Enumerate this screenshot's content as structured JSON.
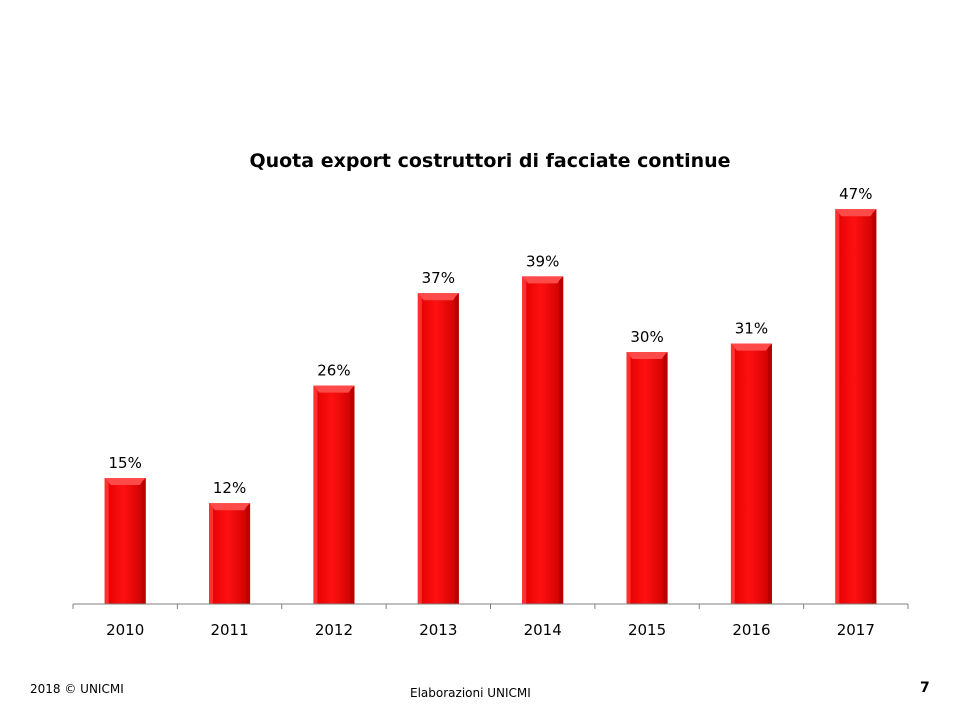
{
  "chart_data": {
    "type": "bar",
    "title": "Quota export costruttori di facciate continue",
    "categories": [
      "2010",
      "2011",
      "2012",
      "2013",
      "2014",
      "2015",
      "2016",
      "2017"
    ],
    "values": [
      15,
      12,
      26,
      37,
      39,
      30,
      31,
      47
    ],
    "value_labels": [
      "15%",
      "12%",
      "26%",
      "37%",
      "39%",
      "30%",
      "31%",
      "47%"
    ],
    "unit": "%",
    "xlabel": "",
    "ylabel": "",
    "ylim": [
      0,
      50
    ],
    "grid": false,
    "legend": "none",
    "bar_color": "#ff0000",
    "bar_highlight": "#ff4a4a",
    "bar_shadow": "#b80000"
  },
  "footer": {
    "copyright": "2018 © UNICMI",
    "source": "Elaborazioni UNICMI",
    "page_number": "7"
  }
}
